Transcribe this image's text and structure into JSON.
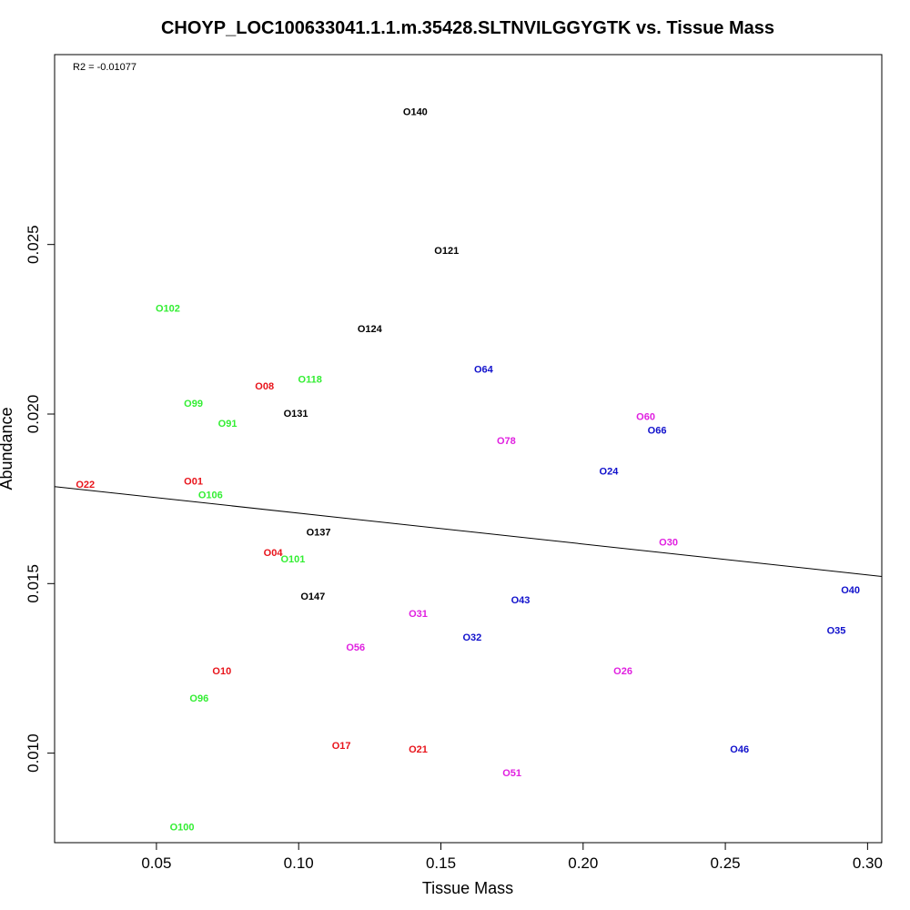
{
  "chart_data": {
    "type": "scatter",
    "title": "CHOYP_LOC100633041.1.1.m.35428.SLTNVILGGYGTK vs. Tissue Mass",
    "xlabel": "Tissue Mass",
    "ylabel": "Abundance",
    "xlim": [
      0.0142,
      0.305
    ],
    "ylim": [
      0.00736,
      0.0306
    ],
    "x_ticks": [
      {
        "value": 0.05,
        "label": "0.05"
      },
      {
        "value": 0.1,
        "label": "0.10"
      },
      {
        "value": 0.15,
        "label": "0.15"
      },
      {
        "value": 0.2,
        "label": "0.20"
      },
      {
        "value": 0.25,
        "label": "0.25"
      },
      {
        "value": 0.3,
        "label": "0.30"
      }
    ],
    "y_ticks": [
      {
        "value": 0.01,
        "label": "0.010"
      },
      {
        "value": 0.015,
        "label": "0.015"
      },
      {
        "value": 0.02,
        "label": "0.020"
      },
      {
        "value": 0.025,
        "label": "0.025"
      }
    ],
    "grid": false,
    "annotation": "R2 = -0.01077",
    "regression_line": {
      "x": [
        0.0142,
        0.305
      ],
      "y": [
        0.01786,
        0.01521
      ]
    },
    "colors": {
      "black": "#000000",
      "red": "#e8141b",
      "green": "#33ee33",
      "blue": "#1010cc",
      "magenta": "#e020e0"
    },
    "points": [
      {
        "label": "O140",
        "x": 0.141,
        "y": 0.0289,
        "color": "#000000"
      },
      {
        "label": "O121",
        "x": 0.152,
        "y": 0.0248,
        "color": "#000000"
      },
      {
        "label": "O124",
        "x": 0.125,
        "y": 0.0225,
        "color": "#000000"
      },
      {
        "label": "O131",
        "x": 0.099,
        "y": 0.02,
        "color": "#000000"
      },
      {
        "label": "O137",
        "x": 0.107,
        "y": 0.0165,
        "color": "#000000"
      },
      {
        "label": "O147",
        "x": 0.105,
        "y": 0.0146,
        "color": "#000000"
      },
      {
        "label": "O22",
        "x": 0.025,
        "y": 0.0179,
        "color": "#e8141b"
      },
      {
        "label": "O08",
        "x": 0.088,
        "y": 0.0208,
        "color": "#e8141b"
      },
      {
        "label": "O01",
        "x": 0.063,
        "y": 0.018,
        "color": "#e8141b"
      },
      {
        "label": "O04",
        "x": 0.091,
        "y": 0.0159,
        "color": "#e8141b"
      },
      {
        "label": "O10",
        "x": 0.073,
        "y": 0.0124,
        "color": "#e8141b"
      },
      {
        "label": "O17",
        "x": 0.115,
        "y": 0.0102,
        "color": "#e8141b"
      },
      {
        "label": "O21",
        "x": 0.142,
        "y": 0.0101,
        "color": "#e8141b"
      },
      {
        "label": "O102",
        "x": 0.054,
        "y": 0.0231,
        "color": "#33ee33"
      },
      {
        "label": "O118",
        "x": 0.104,
        "y": 0.021,
        "color": "#33ee33"
      },
      {
        "label": "O99",
        "x": 0.063,
        "y": 0.0203,
        "color": "#33ee33"
      },
      {
        "label": "O91",
        "x": 0.075,
        "y": 0.0197,
        "color": "#33ee33"
      },
      {
        "label": "O106",
        "x": 0.069,
        "y": 0.0176,
        "color": "#33ee33"
      },
      {
        "label": "O101",
        "x": 0.098,
        "y": 0.0157,
        "color": "#33ee33"
      },
      {
        "label": "O96",
        "x": 0.065,
        "y": 0.0116,
        "color": "#33ee33"
      },
      {
        "label": "O100",
        "x": 0.059,
        "y": 0.0078,
        "color": "#33ee33"
      },
      {
        "label": "O64",
        "x": 0.165,
        "y": 0.0213,
        "color": "#1010cc"
      },
      {
        "label": "O66",
        "x": 0.226,
        "y": 0.0195,
        "color": "#1010cc"
      },
      {
        "label": "O24",
        "x": 0.209,
        "y": 0.0183,
        "color": "#1010cc"
      },
      {
        "label": "O43",
        "x": 0.178,
        "y": 0.0145,
        "color": "#1010cc"
      },
      {
        "label": "O32",
        "x": 0.161,
        "y": 0.0134,
        "color": "#1010cc"
      },
      {
        "label": "O40",
        "x": 0.294,
        "y": 0.0148,
        "color": "#1010cc"
      },
      {
        "label": "O35",
        "x": 0.289,
        "y": 0.0136,
        "color": "#1010cc"
      },
      {
        "label": "O46",
        "x": 0.255,
        "y": 0.0101,
        "color": "#1010cc"
      },
      {
        "label": "O60",
        "x": 0.222,
        "y": 0.0199,
        "color": "#e020e0"
      },
      {
        "label": "O78",
        "x": 0.173,
        "y": 0.0192,
        "color": "#e020e0"
      },
      {
        "label": "O30",
        "x": 0.23,
        "y": 0.0162,
        "color": "#e020e0"
      },
      {
        "label": "O31",
        "x": 0.142,
        "y": 0.0141,
        "color": "#e020e0"
      },
      {
        "label": "O56",
        "x": 0.12,
        "y": 0.0131,
        "color": "#e020e0"
      },
      {
        "label": "O26",
        "x": 0.214,
        "y": 0.0124,
        "color": "#e020e0"
      },
      {
        "label": "O51",
        "x": 0.175,
        "y": 0.0094,
        "color": "#e020e0"
      }
    ]
  }
}
